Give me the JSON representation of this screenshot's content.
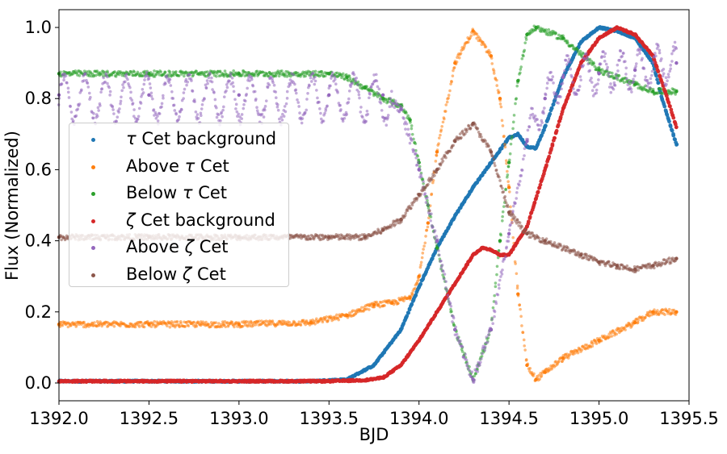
{
  "chart_data": {
    "type": "scatter",
    "xlabel": "BJD",
    "ylabel": "Flux (Normalized)",
    "xlim": [
      1392.0,
      1395.5
    ],
    "ylim": [
      -0.05,
      1.05
    ],
    "xticks": [
      "1392.0",
      "1392.5",
      "1393.0",
      "1393.5",
      "1394.0",
      "1394.5",
      "1395.0",
      "1395.5"
    ],
    "yticks": [
      "0.0",
      "0.2",
      "0.4",
      "0.6",
      "0.8",
      "1.0"
    ],
    "grid": false,
    "legend_position": "center-left",
    "series": [
      {
        "name": "τ Cet background",
        "label_parts": [
          "τ",
          " Cet background"
        ],
        "color": "#1f77b4",
        "x": [
          1392.0,
          1392.5,
          1393.0,
          1393.4,
          1393.6,
          1393.75,
          1393.9,
          1394.0,
          1394.1,
          1394.2,
          1394.3,
          1394.4,
          1394.5,
          1394.55,
          1394.6,
          1394.65,
          1394.7,
          1394.8,
          1394.9,
          1395.0,
          1395.1,
          1395.2,
          1395.3,
          1395.35,
          1395.43
        ],
        "y": [
          0.005,
          0.005,
          0.005,
          0.005,
          0.01,
          0.05,
          0.15,
          0.27,
          0.38,
          0.47,
          0.55,
          0.62,
          0.69,
          0.7,
          0.665,
          0.66,
          0.72,
          0.86,
          0.96,
          1.0,
          0.99,
          0.97,
          0.9,
          0.8,
          0.67
        ]
      },
      {
        "name": "Above τ Cet",
        "label_parts": [
          "Above ",
          "τ",
          " Cet"
        ],
        "color": "#ff7f0e",
        "x": [
          1392.0,
          1392.5,
          1393.0,
          1393.4,
          1393.6,
          1393.75,
          1393.85,
          1393.95,
          1394.0,
          1394.05,
          1394.1,
          1394.2,
          1394.3,
          1394.4,
          1394.45,
          1394.5,
          1394.55,
          1394.6,
          1394.65,
          1394.7,
          1394.8,
          1395.0,
          1395.2,
          1395.3,
          1395.43
        ],
        "y": [
          0.165,
          0.165,
          0.165,
          0.17,
          0.19,
          0.22,
          0.225,
          0.24,
          0.3,
          0.45,
          0.65,
          0.9,
          0.99,
          0.92,
          0.8,
          0.55,
          0.25,
          0.05,
          0.01,
          0.03,
          0.07,
          0.12,
          0.17,
          0.2,
          0.2
        ]
      },
      {
        "name": "Below τ Cet",
        "label_parts": [
          "Below ",
          "τ",
          " Cet"
        ],
        "color": "#2ca02c",
        "x": [
          1392.0,
          1392.5,
          1393.0,
          1393.5,
          1393.6,
          1393.7,
          1393.8,
          1393.9,
          1393.95,
          1394.0,
          1394.05,
          1394.1,
          1394.2,
          1394.3,
          1394.4,
          1394.45,
          1394.5,
          1394.55,
          1394.6,
          1394.65,
          1394.8,
          1395.0,
          1395.2,
          1395.3,
          1395.43
        ],
        "y": [
          0.87,
          0.87,
          0.87,
          0.87,
          0.86,
          0.83,
          0.8,
          0.78,
          0.74,
          0.62,
          0.5,
          0.38,
          0.15,
          0.01,
          0.15,
          0.4,
          0.62,
          0.85,
          0.98,
          1.0,
          0.97,
          0.88,
          0.84,
          0.82,
          0.82
        ]
      },
      {
        "name": "ζ Cet background",
        "label_parts": [
          "ζ",
          " Cet background"
        ],
        "color": "#d62728",
        "x": [
          1392.0,
          1392.5,
          1393.0,
          1393.5,
          1393.7,
          1393.8,
          1393.9,
          1394.0,
          1394.1,
          1394.2,
          1394.3,
          1394.35,
          1394.4,
          1394.45,
          1394.5,
          1394.6,
          1394.7,
          1394.8,
          1394.9,
          1395.0,
          1395.1,
          1395.2,
          1395.3,
          1395.38,
          1395.43
        ],
        "y": [
          0.005,
          0.005,
          0.005,
          0.005,
          0.008,
          0.015,
          0.05,
          0.12,
          0.2,
          0.28,
          0.36,
          0.38,
          0.375,
          0.36,
          0.36,
          0.44,
          0.6,
          0.77,
          0.9,
          0.97,
          1.0,
          0.98,
          0.92,
          0.8,
          0.72
        ]
      },
      {
        "name": "Above ζ Cet",
        "label_parts": [
          "Above ",
          "ζ",
          " Cet"
        ],
        "color": "#9467bd",
        "oscillating": true,
        "x": [
          1392.0,
          1392.5,
          1393.0,
          1393.5,
          1393.8,
          1393.9,
          1394.0,
          1394.1,
          1394.2,
          1394.3,
          1394.4,
          1394.5,
          1394.6,
          1394.7,
          1394.8,
          1395.0,
          1395.2,
          1395.43
        ],
        "y": [
          0.81,
          0.81,
          0.81,
          0.81,
          0.81,
          0.77,
          0.6,
          0.4,
          0.15,
          0.01,
          0.15,
          0.42,
          0.68,
          0.8,
          0.86,
          0.87,
          0.88,
          0.9
        ]
      },
      {
        "name": "Below ζ Cet",
        "label_parts": [
          "Below ",
          "ζ",
          " Cet"
        ],
        "color": "#8c564b",
        "x": [
          1392.0,
          1392.5,
          1393.0,
          1393.5,
          1393.7,
          1393.8,
          1393.9,
          1394.0,
          1394.1,
          1394.2,
          1394.3,
          1394.4,
          1394.5,
          1394.6,
          1394.7,
          1394.9,
          1395.0,
          1395.1,
          1395.2,
          1395.3,
          1395.43
        ],
        "y": [
          0.41,
          0.41,
          0.41,
          0.41,
          0.41,
          0.43,
          0.46,
          0.53,
          0.6,
          0.68,
          0.73,
          0.65,
          0.48,
          0.42,
          0.4,
          0.36,
          0.34,
          0.33,
          0.32,
          0.33,
          0.35
        ]
      }
    ]
  }
}
